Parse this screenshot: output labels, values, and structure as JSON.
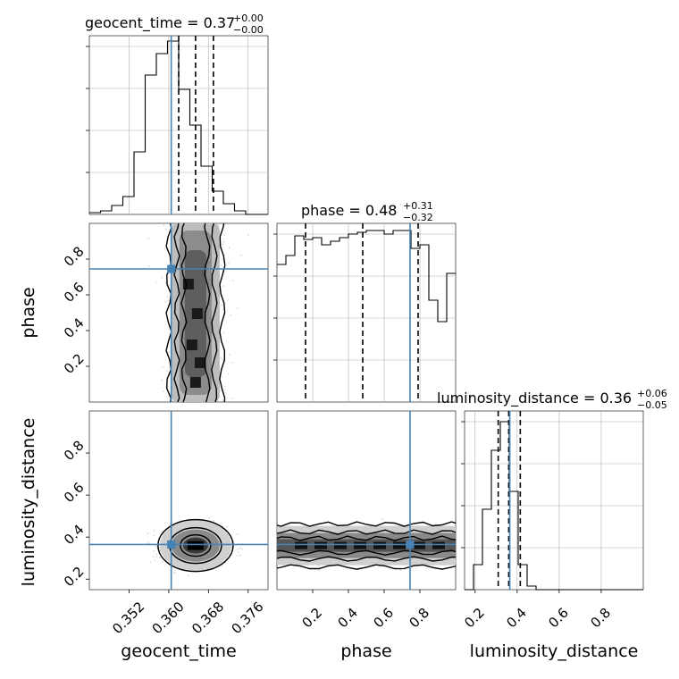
{
  "chart_data": {
    "type": "corner",
    "truth_color": "#4682b4",
    "parameters": [
      {
        "name": "geocent_time",
        "range": [
          0.344,
          0.38
        ],
        "ticks": [
          "0.352",
          "0.360",
          "0.368",
          "0.376"
        ],
        "tick_values": [
          0.352,
          0.36,
          0.368,
          0.376
        ],
        "truth": 0.3605,
        "quantiles": [
          0.362,
          0.3654,
          0.369
        ],
        "title_main": "geocent_time = 0.37",
        "title_sup": "+0.00",
        "title_sub": "−0.00",
        "hist": [
          0.01,
          0.02,
          0.05,
          0.1,
          0.35,
          0.78,
          0.9,
          0.97,
          0.7,
          0.5,
          0.27,
          0.13,
          0.06,
          0.02,
          0.0,
          0.0
        ],
        "axis_label": "geocent_time"
      },
      {
        "name": "phase",
        "range": [
          0.0,
          1.0
        ],
        "ticks": [
          "0.2",
          "0.4",
          "0.6",
          "0.8"
        ],
        "tick_values": [
          0.2,
          0.4,
          0.6,
          0.8
        ],
        "truth": 0.745,
        "quantiles": [
          0.16,
          0.48,
          0.79
        ],
        "title_main": "phase = 0.48",
        "title_sup": "+0.31",
        "title_sub": "−0.32",
        "hist": [
          0.77,
          0.82,
          0.93,
          0.91,
          0.92,
          0.88,
          0.9,
          0.92,
          0.94,
          0.95,
          0.96,
          0.96,
          0.94,
          0.96,
          0.96,
          0.86,
          0.88,
          0.57,
          0.45,
          0.72
        ],
        "axis_label": "phase"
      },
      {
        "name": "luminosity_distance",
        "range": [
          0.15,
          1.0
        ],
        "ticks": [
          "0.2",
          "0.4",
          "0.6",
          "0.8"
        ],
        "tick_values": [
          0.2,
          0.4,
          0.6,
          0.8
        ],
        "truth": 0.365,
        "quantiles": [
          0.31,
          0.36,
          0.415
        ],
        "title_main": "luminosity_distance = 0.36",
        "title_sup": "+0.06",
        "title_sub": "−0.05",
        "hist": [
          0.0,
          0.14,
          0.45,
          0.78,
          0.94,
          0.55,
          0.14,
          0.02,
          0.0,
          0.0,
          0.0,
          0.0,
          0.0,
          0.0,
          0.0,
          0.0,
          0.0,
          0.0,
          0.0,
          0.0
        ],
        "axis_label": "luminosity_distance"
      }
    ],
    "ylabels": {
      "row1": "phase",
      "row2": "luminosity_distance"
    },
    "grid": true
  }
}
